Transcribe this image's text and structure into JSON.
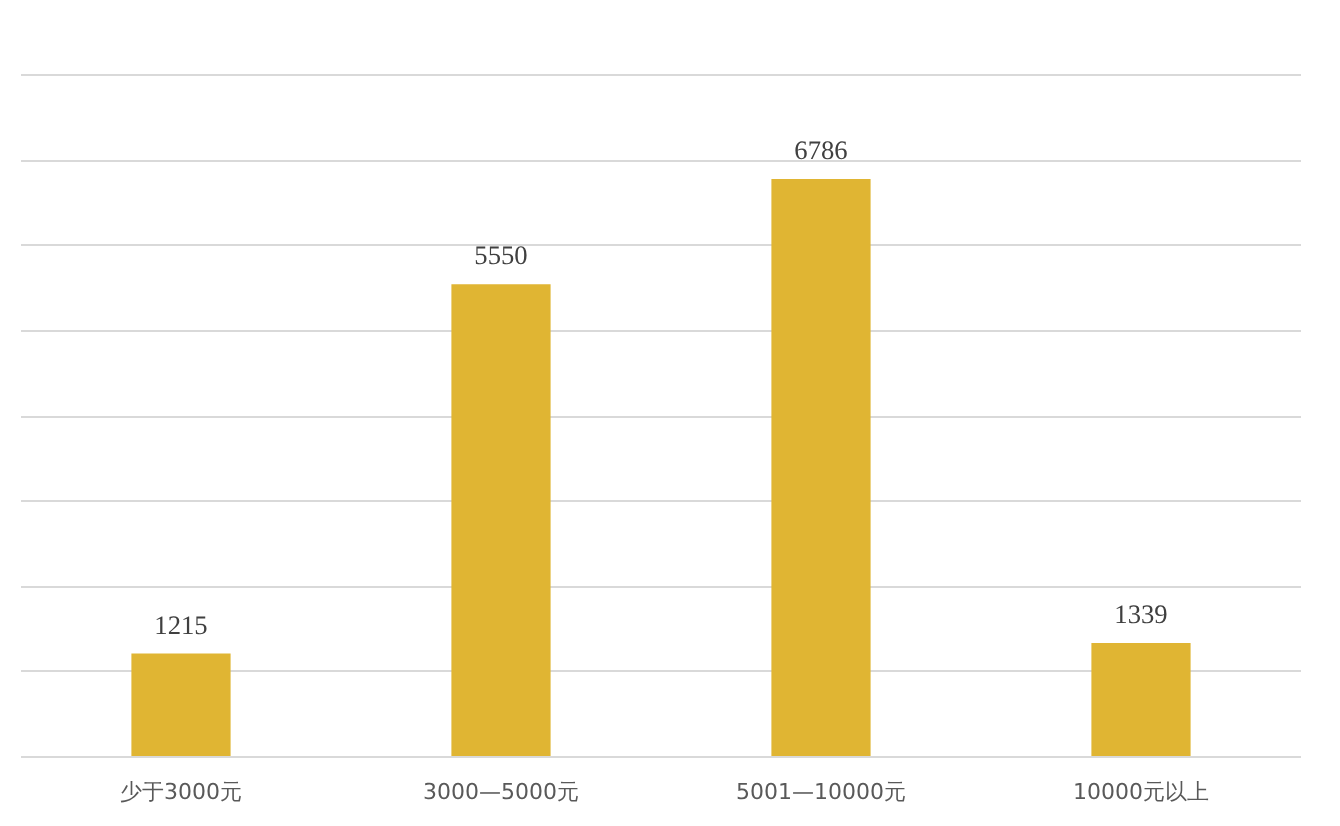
{
  "chart_data": {
    "type": "bar",
    "categories": [
      "少于3000元",
      "3000—5000元",
      "5001—10000元",
      "10000元以上"
    ],
    "values": [
      1215,
      5550,
      6786,
      1339
    ],
    "color": "#e0b533",
    "ylim": [
      0,
      8000
    ],
    "yticks": [
      {
        "value": 0,
        "label": null
      },
      {
        "value": 1000,
        "label": null
      },
      {
        "value": 2000,
        "label": null
      },
      {
        "value": 3000,
        "label": null
      },
      {
        "value": 4000,
        "label": null
      },
      {
        "value": 5000,
        "label": null
      },
      {
        "value": 6000,
        "label": null
      },
      {
        "value": 7000,
        "label": null
      },
      {
        "value": 8000,
        "label": null
      }
    ],
    "grid": "y",
    "tick_labels": "x",
    "data_labels": true
  }
}
